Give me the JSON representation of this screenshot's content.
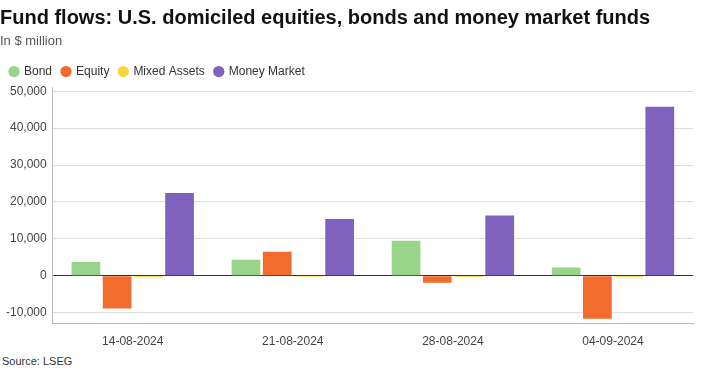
{
  "chart_data": {
    "type": "bar",
    "title": "Fund flows: U.S. domiciled equities, bonds and money market funds",
    "subtitle": "In $ million",
    "source": "Source: LSEG",
    "categories": [
      "14-08-2024",
      "21-08-2024",
      "28-08-2024",
      "04-09-2024"
    ],
    "series": [
      {
        "name": "Bond",
        "color": "#98d48a",
        "values": [
          3700,
          4300,
          9500,
          2200
        ]
      },
      {
        "name": "Equity",
        "color": "#f26d2d",
        "values": [
          -8900,
          6500,
          -1900,
          -11700
        ]
      },
      {
        "name": "Mixed Assets",
        "color": "#f3d83c",
        "values": [
          -500,
          -300,
          -400,
          -500
        ]
      },
      {
        "name": "Money Market",
        "color": "#7f62bd",
        "values": [
          22400,
          15400,
          16300,
          45800
        ]
      }
    ],
    "ylim": [
      -13000,
      51000
    ],
    "yticks": [
      {
        "value": -10000,
        "label": "-10,000"
      },
      0,
      {
        "value": 10000,
        "label": "10,000"
      },
      {
        "value": 20000,
        "label": "20,000"
      },
      {
        "value": 30000,
        "label": "30,000"
      },
      {
        "value": 40000,
        "label": "40,000"
      },
      {
        "value": 50000,
        "label": "50,000"
      }
    ],
    "grid": true,
    "legend": "top-left"
  }
}
